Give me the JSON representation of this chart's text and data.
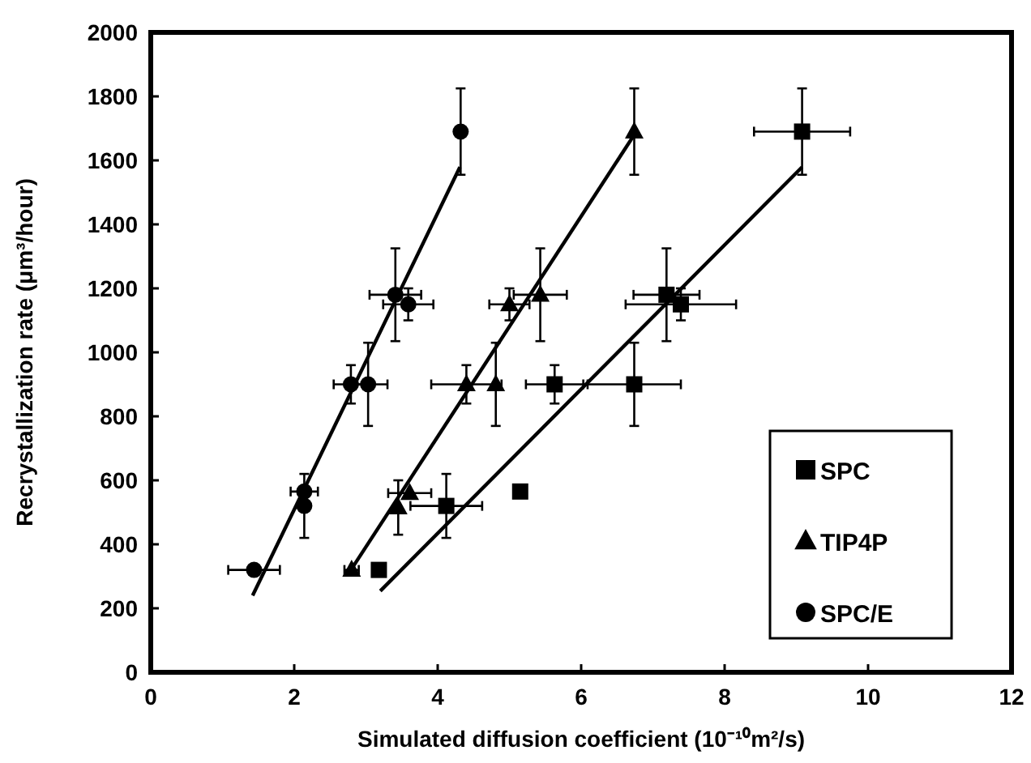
{
  "chart_data": {
    "type": "scatter",
    "xlabel": "Simulated diffusion coefficient (10⁻¹⁰m²/s)",
    "ylabel": "Recrystallization rate (μm³/hour)",
    "xlim": [
      0,
      12
    ],
    "ylim": [
      0,
      2000
    ],
    "xticks": [
      0,
      2,
      4,
      6,
      8,
      10,
      12
    ],
    "yticks": [
      0,
      200,
      400,
      600,
      800,
      1000,
      1200,
      1400,
      1600,
      1800,
      2000
    ],
    "grid": false,
    "legend": "bottom right",
    "series": [
      {
        "name": "SPC",
        "color": "#000000",
        "marker": "square",
        "x": [
          3.18,
          4.12,
          5.15,
          5.63,
          6.74,
          7.19,
          7.39,
          9.08
        ],
        "values": [
          320,
          520,
          565,
          900,
          900,
          1180,
          1150,
          1690
        ],
        "xerrors": [
          null,
          0.5,
          null,
          0.4,
          0.65,
          0.46,
          0.77,
          0.67
        ],
        "errors": [
          null,
          100,
          null,
          60,
          130,
          145,
          50,
          135
        ]
      },
      {
        "name": "TIP4P",
        "color": "#000000",
        "marker": "triangle",
        "x": [
          2.8,
          3.45,
          3.61,
          4.4,
          4.81,
          5.0,
          5.43,
          6.74
        ],
        "values": [
          320,
          515,
          560,
          900,
          900,
          1150,
          1180,
          1690
        ],
        "xerrors": [
          0.1,
          null,
          0.3,
          0.49,
          null,
          0.28,
          0.37,
          null
        ],
        "errors": [
          null,
          85,
          null,
          60,
          130,
          50,
          145,
          135
        ]
      },
      {
        "name": "SPC/E",
        "color": "#000000",
        "marker": "circle",
        "x": [
          1.44,
          2.14,
          2.14,
          2.79,
          3.03,
          3.41,
          3.59,
          4.32
        ],
        "values": [
          320,
          520,
          565,
          900,
          900,
          1180,
          1150,
          1690
        ],
        "xerrors": [
          0.36,
          null,
          0.19,
          0.24,
          0.27,
          0.36,
          0.35,
          null
        ],
        "errors": [
          null,
          100,
          null,
          60,
          130,
          145,
          50,
          135
        ]
      },
      {
        "type": "line",
        "color": "#000000",
        "marker": "none",
        "x": [
          3.2,
          9.08
        ],
        "values": [
          254,
          1579
        ]
      },
      {
        "type": "line",
        "color": "#000000",
        "marker": "none",
        "x": [
          2.82,
          6.74
        ],
        "values": [
          330,
          1680
        ]
      },
      {
        "type": "line",
        "color": "#000000",
        "marker": "none",
        "x": [
          1.42,
          4.31
        ],
        "values": [
          240,
          1579
        ]
      }
    ]
  }
}
